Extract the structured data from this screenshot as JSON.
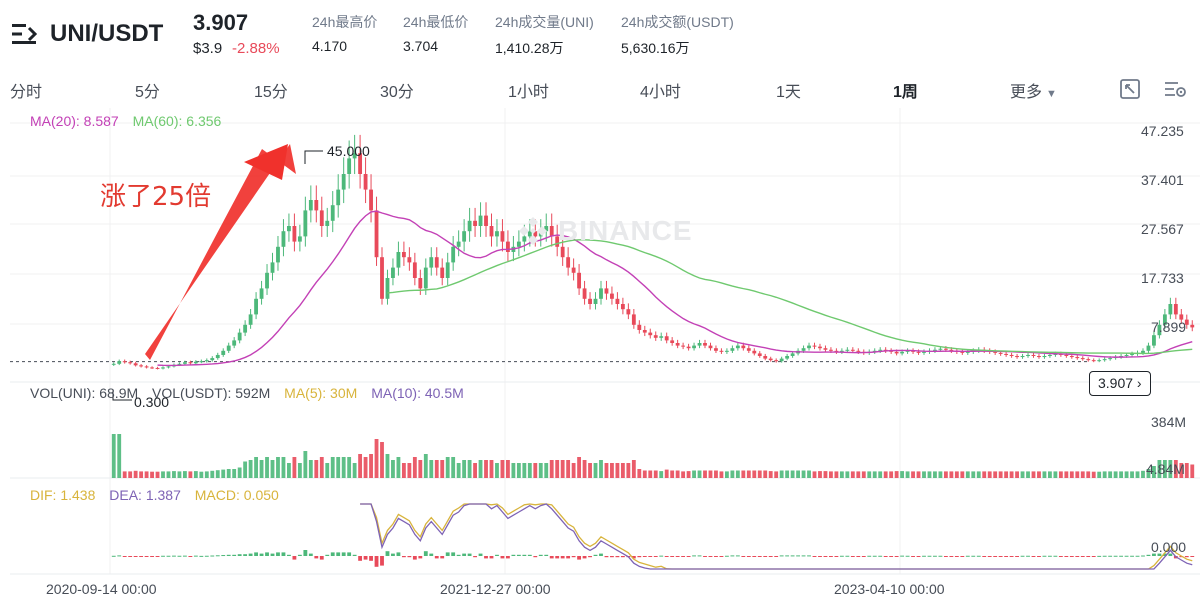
{
  "header": {
    "symbol": "UNI/USDT",
    "last_price": "3.907",
    "usd_price": "$3.9",
    "change_pct": "-2.88%",
    "stats": [
      {
        "label": "24h最高价",
        "value": "4.170"
      },
      {
        "label": "24h最低价",
        "value": "3.704"
      },
      {
        "label": "24h成交量(UNI)",
        "value": "1,410.28万"
      },
      {
        "label": "24h成交额(USDT)",
        "value": "5,630.16万"
      }
    ]
  },
  "intervals": {
    "items": [
      "分时",
      "5分",
      "15分",
      "30分",
      "1小时",
      "4小时",
      "1天",
      "1周"
    ],
    "active": "1周",
    "more_label": "更多"
  },
  "watermark": "BINANCE",
  "annotation": "涨了25倍",
  "legends": {
    "ma": [
      {
        "text": "MA(20): 8.587",
        "color": "#c341b6"
      },
      {
        "text": "MA(60): 6.356",
        "color": "#6fc96f"
      }
    ],
    "vol": [
      {
        "text": "VOL(UNI): 68.9M",
        "color": "#474d57"
      },
      {
        "text": "VOL(USDT): 592M",
        "color": "#474d57"
      },
      {
        "text": "MA(5): 30M",
        "color": "#d8b43c"
      },
      {
        "text": "MA(10): 40.5M",
        "color": "#7e63b5"
      }
    ],
    "macd": [
      {
        "text": "DIF: 1.438",
        "color": "#d8b43c"
      },
      {
        "text": "DEA: 1.387",
        "color": "#7e63b5"
      },
      {
        "text": "MACD: 0.050",
        "color": "#d8b43c"
      }
    ]
  },
  "price_tag": "3.907",
  "high_label": "45.000",
  "low_label": "0.300",
  "colors": {
    "up": "#4db87a",
    "down": "#e84a5a",
    "ma20": "#c341b6",
    "ma60": "#6fc96f",
    "dif": "#d8b43c",
    "dea": "#7e63b5",
    "annotation": "#f0312c"
  },
  "chart_data": {
    "type": "candlestick",
    "y_axis_ticks": [
      "47.235",
      "37.401",
      "27.567",
      "17.733",
      "7.899"
    ],
    "volume_axis_ticks": [
      "384M",
      "4.84M"
    ],
    "macd_axis_ticks": [
      "0.000"
    ],
    "x_axis_labels": [
      "2020-09-14 00:00",
      "2021-12-27 00:00",
      "2023-04-10 00:00"
    ],
    "ylim": [
      0,
      50
    ],
    "current_price": 3.907,
    "series_close": [
      3.5,
      4,
      3.8,
      3.6,
      3.2,
      3,
      2.8,
      2.7,
      2.6,
      2.8,
      3,
      3.3,
      3.5,
      3.8,
      3.6,
      3.9,
      4,
      4.2,
      4.6,
      5.2,
      6,
      7,
      8,
      9.5,
      11,
      13,
      16,
      18,
      21,
      23,
      26,
      29,
      30,
      27,
      28,
      33,
      35,
      33,
      30,
      31,
      34,
      37,
      40,
      43,
      44,
      40,
      37,
      33,
      24,
      16,
      20,
      22,
      25,
      24,
      23,
      20,
      18,
      22,
      24,
      22,
      20,
      23,
      26,
      27,
      29,
      31,
      30,
      32,
      30,
      28,
      29,
      27,
      25,
      26,
      27,
      28,
      29,
      28,
      29,
      30,
      28,
      26,
      24,
      22,
      21,
      18,
      16,
      15,
      16,
      18,
      17,
      16,
      15,
      14,
      13,
      11,
      10,
      9.5,
      9,
      8.5,
      8.8,
      8,
      7.5,
      7,
      6.8,
      6.5,
      7,
      7.5,
      7,
      6.5,
      6,
      5.8,
      6,
      6.5,
      7,
      6.5,
      6,
      5.5,
      5,
      4.5,
      4.2,
      4,
      4.5,
      5,
      5.5,
      6,
      6.5,
      7,
      6.8,
      6.5,
      6.2,
      6,
      5.8,
      6,
      6.2,
      6,
      5.8,
      5.6,
      5.8,
      6,
      6.2,
      6,
      5.8,
      5.5,
      5.8,
      6,
      5.8,
      5.6,
      5.8,
      6,
      6.2,
      6.4,
      6.2,
      6,
      5.8,
      5.6,
      5.8,
      6,
      6.2,
      6,
      5.8,
      5.6,
      5.4,
      5.2,
      5,
      4.8,
      5,
      5.2,
      5,
      4.8,
      5,
      5.2,
      5.4,
      5.2,
      5,
      4.8,
      4.6,
      4.4,
      4.2,
      4.1,
      4.2,
      4.4,
      4.6,
      4.8,
      5,
      5.2,
      5.4,
      5.6,
      6,
      7,
      9,
      11,
      13,
      15,
      13,
      12,
      11,
      10.5
    ]
  }
}
